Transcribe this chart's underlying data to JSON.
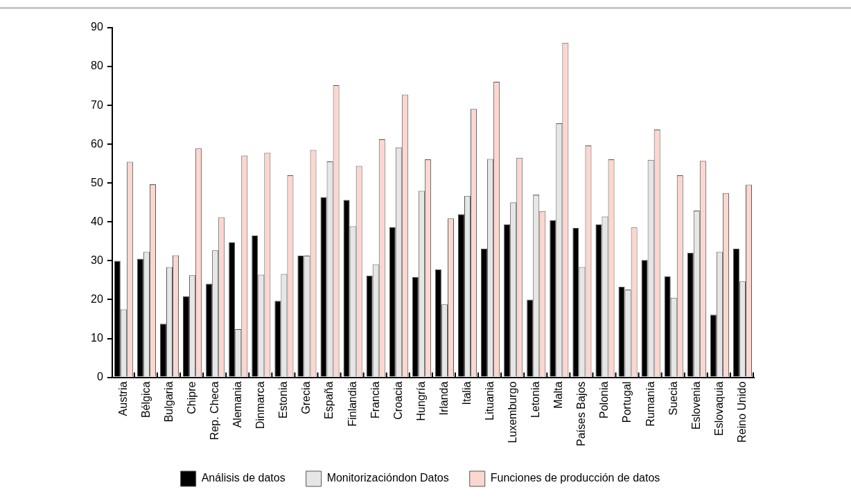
{
  "chart_data": {
    "type": "bar",
    "categories": [
      "Austria",
      "Bélgica",
      "Bulgaria",
      "Chipre",
      "Rep. Checa",
      "Alemania",
      "Dinmarca",
      "Estonia",
      "Grecia",
      "España",
      "Finlandia",
      "Francia",
      "Croacia",
      "Hungría",
      "Irlanda",
      "Italia",
      "Lituania",
      "Luxemburgo",
      "Letonia",
      "Malta",
      "Países Bajos",
      "Polonia",
      "Portugal",
      "Rumanía",
      "Suecia",
      "Eslovenia",
      "Eslovaquia",
      "Reino Unido"
    ],
    "series": [
      {
        "name": "Análisis de datos",
        "color": "#000000",
        "values": [
          30,
          30.5,
          13.8,
          20.9,
          24.1,
          34.8,
          36.5,
          19.7,
          31.3,
          46.4,
          45.7,
          26.2,
          38.7,
          25.8,
          27.8,
          42,
          33.1,
          39.4,
          20,
          40.4,
          38.5,
          39.4,
          23.3,
          30.2,
          26,
          32.1,
          16.1,
          33.1
        ]
      },
      {
        "name": "Monitorizacióndon Datos",
        "color": "#e6e6e6",
        "values": [
          17.5,
          32.3,
          28.4,
          26.3,
          32.7,
          12.4,
          26.4,
          26.6,
          31.3,
          55.6,
          38.9,
          29.1,
          59.2,
          48,
          18.8,
          46.7,
          56.2,
          45,
          47,
          65.4,
          28.4,
          41.4,
          22.6,
          56,
          20.5,
          42.9,
          32.3,
          24.7
        ]
      },
      {
        "name": "Funciones de producción de datos",
        "color": "#fad7cf",
        "values": [
          55.5,
          49.7,
          31.4,
          58.9,
          41.2,
          57.1,
          57.8,
          52,
          58.5,
          75.2,
          54.4,
          61.3,
          72.8,
          56.1,
          40.9,
          69.1,
          76.1,
          56.5,
          42.8,
          86.1,
          59.7,
          56.1,
          38.6,
          63.8,
          52,
          55.7,
          47.4,
          49.6
        ]
      }
    ],
    "ylim": [
      0,
      90
    ],
    "yticks": [
      0,
      10,
      20,
      30,
      40,
      50,
      60,
      70,
      80,
      90
    ],
    "grid": false,
    "legend": "bottom"
  }
}
